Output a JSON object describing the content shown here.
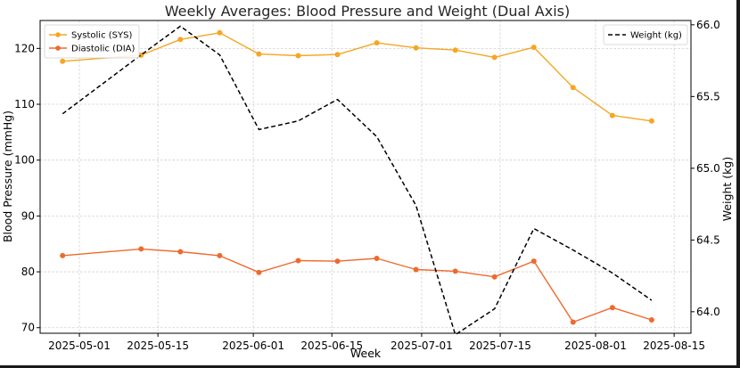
{
  "chart_data": {
    "type": "line",
    "title": "Weekly Averages: Blood Pressure and Weight (Dual Axis)",
    "xlabel": "Week",
    "ylabel_left": "Blood Pressure (mmHg)",
    "ylabel_right": "Weight (kg)",
    "x_tick_labels": [
      "2025-05-01",
      "2025-05-15",
      "2025-06-01",
      "2025-06-15",
      "2025-07-01",
      "2025-07-15",
      "2025-08-01",
      "2025-08-15"
    ],
    "x_tick_dates": [
      "2025-05-01",
      "2025-05-15",
      "2025-06-01",
      "2025-06-15",
      "2025-07-01",
      "2025-07-15",
      "2025-08-01",
      "2025-08-15"
    ],
    "xlim": [
      "2025-04-24",
      "2025-08-18"
    ],
    "ylim_left": [
      69,
      125
    ],
    "yticks_left": [
      70,
      80,
      90,
      100,
      110,
      120
    ],
    "ylim_right": [
      63.85,
      66.03
    ],
    "yticks_right": [
      "64.0",
      "64.5",
      "65.0",
      "65.5",
      "66.0"
    ],
    "grid": true,
    "x": [
      "2025-04-28",
      "2025-05-12",
      "2025-05-19",
      "2025-05-26",
      "2025-06-02",
      "2025-06-09",
      "2025-06-16",
      "2025-06-23",
      "2025-06-30",
      "2025-07-07",
      "2025-07-14",
      "2025-07-21",
      "2025-07-28",
      "2025-08-04",
      "2025-08-11"
    ],
    "series": [
      {
        "name": "Systolic (SYS)",
        "axis": "left",
        "style": "solid-marker",
        "color": "#f5a623",
        "values": [
          117.7,
          118.8,
          121.6,
          122.8,
          119.0,
          118.7,
          118.9,
          121.0,
          120.1,
          119.7,
          118.4,
          120.2,
          113.0,
          108.0,
          107.0
        ]
      },
      {
        "name": "Diastolic (DIA)",
        "axis": "left",
        "style": "solid-marker",
        "color": "#ee6a2e",
        "values": [
          82.9,
          84.1,
          83.6,
          82.9,
          79.9,
          82.0,
          81.9,
          82.4,
          80.4,
          80.1,
          79.1,
          81.9,
          71.0,
          73.6,
          71.4
        ]
      },
      {
        "name": "Weight (kg)",
        "axis": "right",
        "style": "dashed",
        "color": "#000000",
        "values": [
          65.38,
          65.79,
          65.99,
          65.79,
          65.27,
          65.33,
          65.48,
          65.22,
          64.74,
          63.84,
          64.02,
          64.58,
          64.43,
          64.27,
          64.08
        ]
      }
    ],
    "legend_left": {
      "placement": "top-left",
      "items": [
        "Systolic (SYS)",
        "Diastolic (DIA)"
      ]
    },
    "legend_right": {
      "placement": "top-right",
      "items": [
        "Weight (kg)"
      ]
    }
  }
}
